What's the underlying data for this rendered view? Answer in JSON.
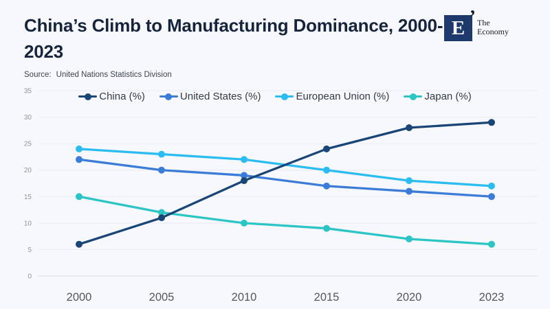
{
  "header": {
    "title": "China’s Climb to Manufacturing Dominance, 2000-2023",
    "source_label": "Source:",
    "source_text": "United Nations Statistics Division"
  },
  "logo": {
    "letter": "E",
    "tick_glyph": "’",
    "name_line1": "The",
    "name_line2": "Economy",
    "square_color": "#1e3a6d",
    "tick_color": "#0b1c38"
  },
  "chart_data": {
    "type": "line",
    "title": "China’s Climb to Manufacturing Dominance, 2000-2023",
    "xlabel": "",
    "ylabel": "",
    "categories": [
      "2000",
      "2005",
      "2010",
      "2015",
      "2020",
      "2023"
    ],
    "series": [
      {
        "name": "China (%)",
        "color": "#1a4577",
        "values": [
          6,
          11,
          18,
          24,
          28,
          29
        ]
      },
      {
        "name": "United States (%)",
        "color": "#3b7cd8",
        "values": [
          22,
          20,
          19,
          17,
          16,
          15
        ]
      },
      {
        "name": "European Union (%)",
        "color": "#2bbcf2",
        "values": [
          24,
          23,
          22,
          20,
          18,
          17
        ]
      },
      {
        "name": "Japan (%)",
        "color": "#2cc5c5",
        "values": [
          15,
          12,
          10,
          9,
          7,
          6
        ]
      }
    ],
    "ylim": [
      0,
      35
    ],
    "ytick_step": 5,
    "grid": true,
    "legend_position": "top-center",
    "colors": {
      "background": "#f7f8fb",
      "gridline": "#e8eaf1",
      "zero_line": "#d6d9e2",
      "ytick_text": "#8f95a1",
      "xtick_text": "#54565e",
      "title_text": "#16243e"
    }
  }
}
